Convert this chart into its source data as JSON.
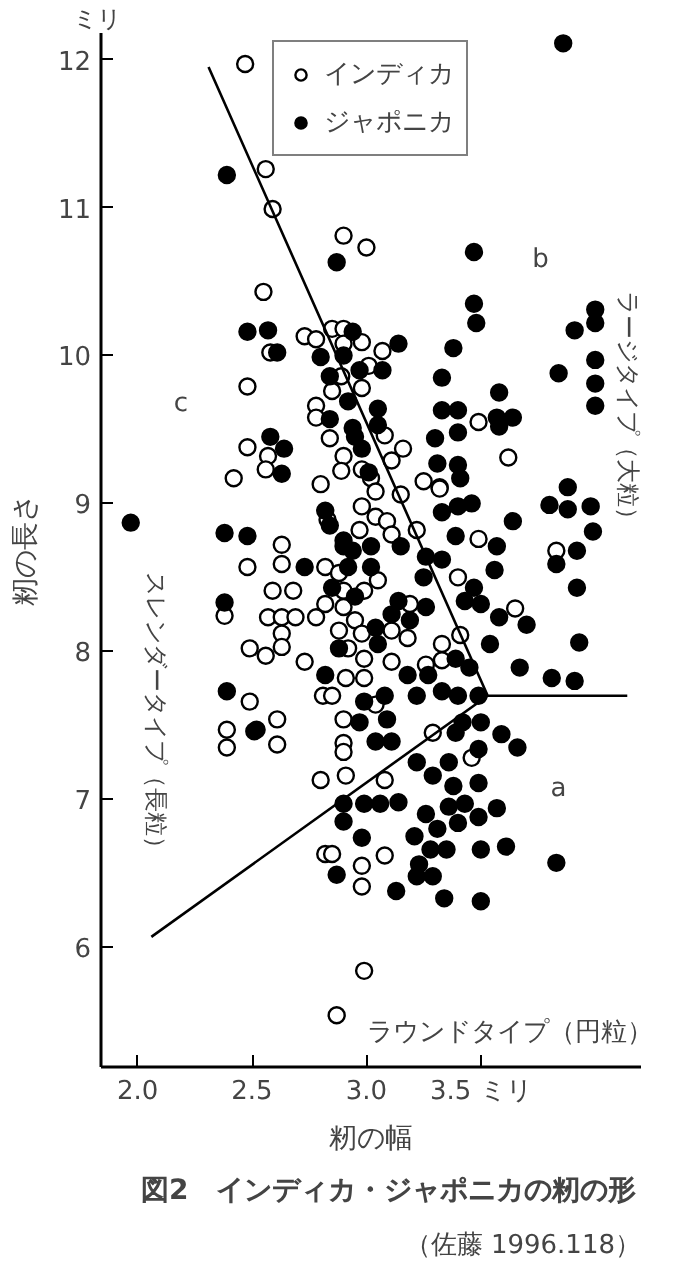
{
  "chart_data": {
    "type": "scatter",
    "title": "図2　インディカ・ジャポニカの籾の形",
    "xlabel": "籾の幅",
    "ylabel": "籾の長さ",
    "xlim": [
      1.84,
      4.2
    ],
    "ylim": [
      5.19,
      12.18
    ],
    "xticks": [
      {
        "value": 2,
        "label": "2.0"
      },
      {
        "value": 2.5,
        "label": "2.5"
      },
      {
        "value": 3,
        "label": "3.0"
      },
      {
        "value": 3.5,
        "label": "3.5 ミリ"
      }
    ],
    "yticks": [
      6,
      7,
      8,
      9,
      10,
      11,
      12
    ],
    "grid": false,
    "legend": "top",
    "marker": "circle",
    "annotations": [
      "ミリ",
      "（佐藤 1996.118）",
      "a",
      "b",
      "c",
      "ラージタイプ（大粒）",
      "スレンダータイプ（長粒）",
      "ラウンドタイプ（円粒）"
    ],
    "series": [
      {
        "name": "インディカ",
        "color": "#ffffff",
        "x": [
          2.47,
          2.56,
          2.59,
          2.9,
          3.0,
          2.55,
          2.73,
          2.78,
          2.85,
          2.9,
          2.98,
          2.58,
          2.9,
          3.07,
          3.01,
          2.48,
          2.89,
          2.98,
          2.85,
          2.78,
          2.78,
          2.84,
          2.9,
          3.08,
          3.16,
          3.11,
          3.49,
          3.62,
          2.48,
          2.57,
          2.56,
          2.42,
          2.8,
          2.89,
          2.98,
          3.02,
          3.25,
          3.32,
          3.04,
          2.63,
          2.63,
          2.48,
          2.59,
          2.68,
          2.38,
          2.57,
          2.63,
          2.69,
          2.78,
          2.63,
          2.49,
          2.56,
          2.63,
          2.73,
          2.98,
          3.04,
          2.83,
          2.97,
          3.09,
          3.11,
          3.22,
          3.32,
          3.15,
          2.82,
          2.88,
          3.05,
          2.99,
          2.9,
          2.82,
          2.9,
          3.19,
          2.95,
          2.88,
          2.98,
          3.11,
          3.18,
          2.92,
          2.99,
          3.11,
          2.91,
          2.99,
          3.33,
          3.4,
          3.49,
          3.65,
          3.41,
          3.33,
          3.83,
          2.49,
          2.81,
          2.85,
          2.9,
          2.61,
          3.04,
          3.26,
          2.39,
          2.39,
          2.61,
          2.9,
          2.9,
          2.8,
          2.91,
          3.08,
          3.29,
          3.46,
          2.82,
          2.85,
          2.98,
          2.98,
          3.08,
          2.99,
          2.87
        ],
        "values": [
          11.97,
          11.26,
          10.99,
          10.81,
          10.73,
          10.43,
          10.13,
          10.11,
          10.18,
          10.18,
          10.09,
          10.02,
          10.08,
          10.03,
          9.93,
          9.79,
          9.86,
          9.78,
          9.76,
          9.66,
          9.58,
          9.44,
          9.32,
          9.46,
          9.37,
          9.29,
          9.55,
          9.31,
          9.38,
          9.32,
          9.23,
          9.17,
          9.13,
          9.22,
          9.23,
          9.17,
          9.15,
          9.11,
          9.08,
          8.72,
          8.59,
          8.57,
          8.41,
          8.41,
          8.24,
          8.23,
          8.23,
          8.23,
          8.23,
          8.12,
          8.02,
          7.97,
          8.03,
          7.93,
          8.98,
          8.91,
          8.89,
          8.82,
          8.88,
          8.79,
          8.82,
          9.1,
          9.06,
          8.57,
          8.53,
          8.48,
          8.41,
          8.41,
          8.32,
          8.3,
          8.32,
          8.21,
          8.14,
          8.12,
          8.14,
          8.09,
          8.02,
          7.95,
          7.93,
          7.82,
          7.82,
          8.05,
          8.5,
          8.76,
          8.29,
          8.11,
          7.94,
          8.68,
          7.66,
          7.7,
          7.7,
          7.54,
          7.54,
          7.64,
          7.91,
          7.47,
          7.35,
          7.37,
          7.38,
          7.32,
          7.13,
          7.16,
          7.13,
          7.45,
          7.28,
          6.63,
          6.63,
          6.55,
          6.41,
          6.62,
          5.84,
          5.54
        ]
      },
      {
        "name": "ジャポニカ",
        "color": "#000000",
        "x": [
          3.86,
          2.39,
          3.47,
          2.87,
          3.47,
          3.48,
          2.48,
          2.57,
          2.61,
          2.8,
          2.94,
          2.9,
          2.97,
          3.07,
          3.14,
          3.38,
          2.84,
          3.33,
          2.92,
          3.05,
          2.84,
          2.94,
          3.05,
          2.95,
          2.98,
          3.33,
          3.4,
          3.4,
          3.58,
          3.57,
          3.58,
          3.64,
          3.3,
          3.31,
          3.4,
          3.41,
          2.58,
          2.64,
          2.63,
          3.01,
          3.91,
          4.0,
          4.0,
          4.0,
          4.0,
          4.0,
          3.84,
          3.88,
          1.97,
          2.38,
          2.48,
          2.73,
          2.38,
          2.82,
          2.84,
          2.9,
          2.9,
          2.94,
          3.02,
          3.15,
          2.92,
          3.02,
          2.85,
          2.95,
          3.14,
          3.26,
          3.33,
          3.39,
          3.4,
          3.46,
          3.33,
          3.25,
          3.43,
          3.5,
          3.47,
          3.57,
          3.56,
          3.64,
          3.8,
          3.88,
          3.98,
          3.99,
          3.92,
          3.83,
          3.92,
          3.58,
          3.7,
          3.93,
          3.04,
          3.05,
          2.88,
          3.11,
          3.26,
          3.19,
          3.18,
          3.27,
          3.22,
          3.39,
          3.45,
          3.33,
          3.4,
          3.49,
          3.54,
          3.67,
          3.81,
          3.91,
          2.39,
          2.82,
          2.99,
          3.08,
          3.09,
          2.97,
          3.42,
          3.5,
          2.51,
          2.52,
          3.04,
          3.11,
          3.39,
          3.49,
          3.59,
          3.66,
          3.22,
          3.29,
          3.36,
          3.38,
          3.49,
          2.9,
          2.99,
          3.06,
          3.14,
          2.9,
          3.26,
          3.36,
          3.43,
          3.49,
          3.57,
          3.31,
          3.4,
          2.98,
          3.21,
          3.28,
          3.35,
          3.5,
          3.61,
          3.83,
          3.23,
          3.22,
          3.29,
          2.87,
          3.13,
          3.34,
          3.5
        ],
        "values": [
          12.11,
          11.22,
          10.7,
          10.63,
          10.35,
          10.22,
          10.16,
          10.17,
          10.02,
          9.99,
          10.16,
          10.0,
          9.9,
          9.9,
          10.08,
          10.05,
          9.86,
          9.85,
          9.69,
          9.64,
          9.57,
          9.51,
          9.53,
          9.45,
          9.37,
          9.63,
          9.63,
          9.48,
          9.75,
          9.58,
          9.52,
          9.58,
          9.44,
          9.27,
          9.26,
          9.17,
          9.45,
          9.37,
          9.2,
          9.21,
          10.17,
          10.31,
          10.22,
          9.97,
          9.81,
          9.66,
          9.88,
          9.11,
          8.87,
          8.8,
          8.78,
          8.57,
          8.33,
          8.95,
          8.85,
          8.75,
          8.71,
          8.68,
          8.71,
          8.71,
          8.57,
          8.57,
          8.43,
          8.37,
          8.34,
          8.64,
          8.62,
          8.78,
          8.98,
          9.0,
          8.94,
          8.5,
          8.34,
          8.32,
          8.43,
          8.71,
          8.55,
          8.88,
          8.99,
          8.96,
          8.98,
          8.81,
          8.68,
          8.59,
          8.43,
          8.23,
          8.18,
          8.06,
          8.16,
          8.05,
          8.02,
          8.25,
          8.3,
          8.21,
          7.84,
          7.84,
          7.7,
          7.95,
          7.89,
          7.73,
          7.7,
          7.7,
          8.05,
          7.89,
          7.82,
          7.8,
          7.73,
          7.84,
          7.66,
          7.7,
          7.54,
          7.52,
          7.52,
          7.52,
          7.46,
          7.47,
          7.39,
          7.39,
          7.45,
          7.34,
          7.44,
          7.35,
          7.25,
          7.16,
          7.25,
          7.09,
          7.11,
          6.97,
          6.97,
          6.97,
          6.98,
          6.85,
          6.9,
          6.95,
          6.97,
          6.88,
          6.94,
          6.8,
          6.84,
          6.74,
          6.75,
          6.66,
          6.66,
          6.66,
          6.68,
          6.57,
          6.56,
          6.48,
          6.48,
          6.49,
          6.38,
          6.33,
          6.31
        ]
      },
      {
        "type": "line",
        "color": "#000000",
        "marker": "none",
        "x": [
          2.31,
          3.53,
          4.14
        ],
        "values": [
          11.95,
          7.7,
          7.7
        ]
      },
      {
        "type": "line",
        "color": "#000000",
        "marker": "none",
        "x": [
          2.06,
          3.53
        ],
        "values": [
          6.07,
          7.7
        ]
      }
    ]
  }
}
